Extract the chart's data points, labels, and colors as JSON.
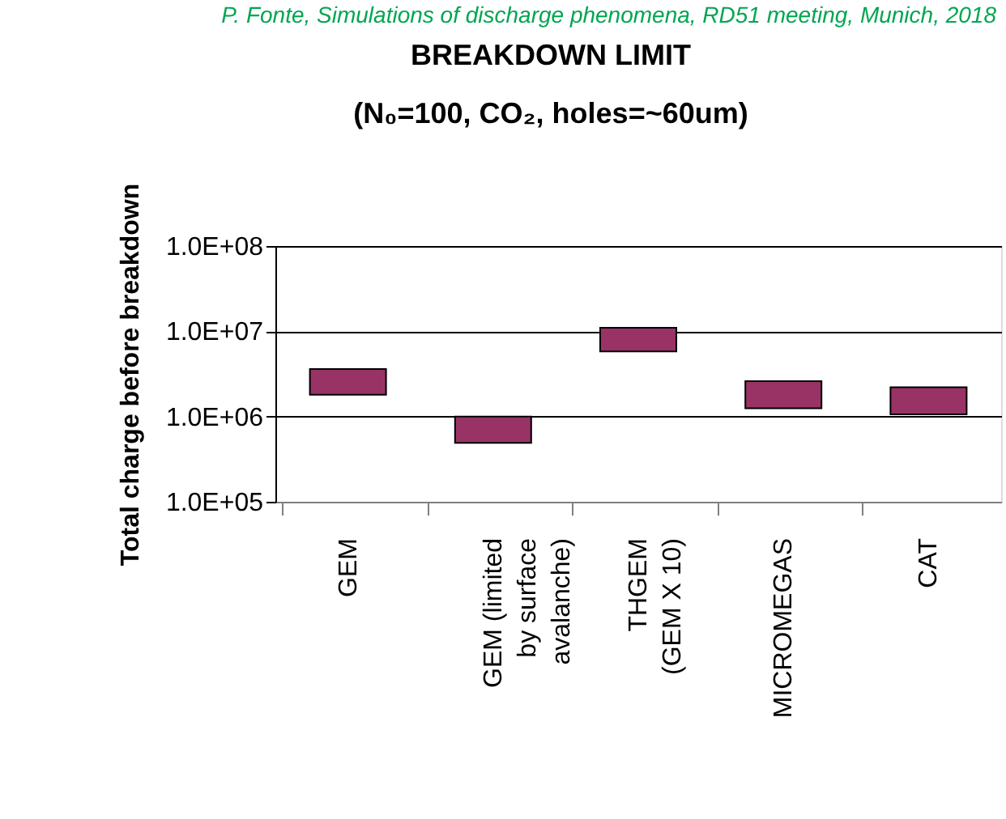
{
  "chart_data": {
    "type": "bar",
    "title": "BREAKDOWN LIMIT",
    "subtitle": "(N₀=100, CO₂, holes=~60um)",
    "ylabel": "Total charge before breakdown",
    "annotations": [
      "P. Fonte, Simulations of discharge phenomena, RD51 meeting, Munich, 2018"
    ],
    "categories": [
      "GEM",
      "GEM (limited\nby surface\navalanche)",
      "THGEM\n(GEM X 10)",
      "MICROMEGAS",
      "CAT"
    ],
    "base": [
      1800000,
      490000,
      5800000,
      1250000,
      1060000
    ],
    "values": [
      1800000,
      510000,
      5200000,
      1350000,
      1140000
    ],
    "color": "#993366",
    "log": true,
    "ylim": [
      100000,
      100000000
    ],
    "yticks": [
      {
        "value": 100000,
        "label": "1.0E+05"
      },
      {
        "value": 1000000,
        "label": "1.0E+06"
      },
      {
        "value": 10000000,
        "label": "1.0E+07"
      },
      {
        "value": 100000000,
        "label": "1.0E+08"
      }
    ],
    "grid": "y"
  }
}
